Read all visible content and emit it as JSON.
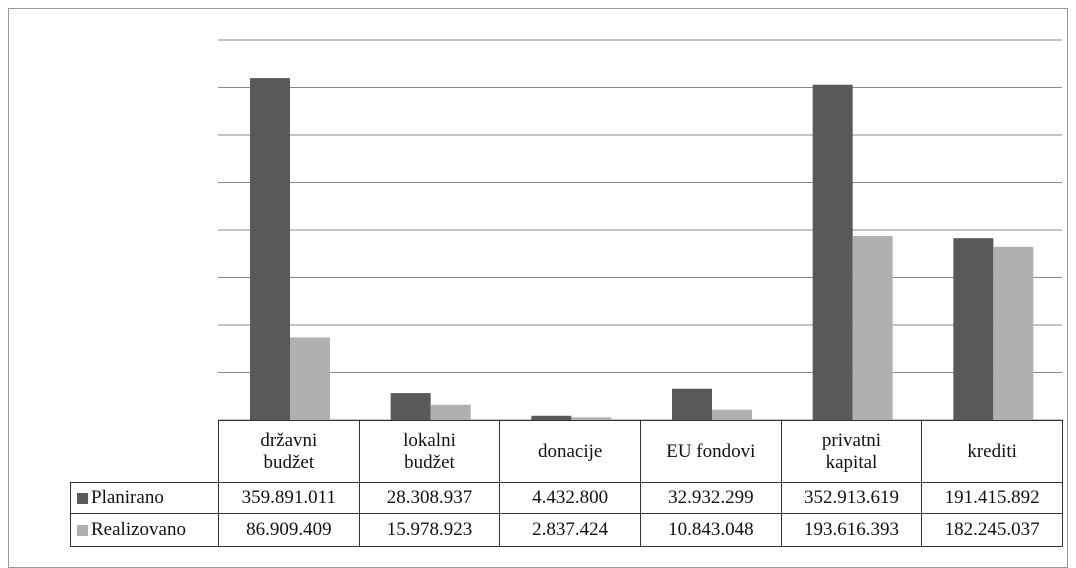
{
  "chart_data": {
    "type": "bar",
    "categories": [
      "državni budžet",
      "lokalni budžet",
      "donacije",
      "EU fondovi",
      "privatni kapital",
      "krediti"
    ],
    "series": [
      {
        "name": "Planirano",
        "color": "#595959",
        "values": [
          359891011,
          28308937,
          4432800,
          32932299,
          352913619,
          191415892
        ],
        "value_labels": [
          "359.891.011",
          "28.308.937",
          "4.432.800",
          "32.932.299",
          "352.913.619",
          "191.415.892"
        ]
      },
      {
        "name": "Realizovano",
        "color": "#b0b0b0",
        "values": [
          86909409,
          15978923,
          2837424,
          10843048,
          193616393,
          182245037
        ],
        "value_labels": [
          "86.909.409",
          "15.978.923",
          "2.837.424",
          "10.843.048",
          "193.616.393",
          "182.245.037"
        ]
      }
    ],
    "ylim": [
      0,
      400000000
    ],
    "yticks": [
      0,
      50000000,
      100000000,
      150000000,
      200000000,
      250000000,
      300000000,
      350000000,
      400000000
    ],
    "grid": true
  }
}
